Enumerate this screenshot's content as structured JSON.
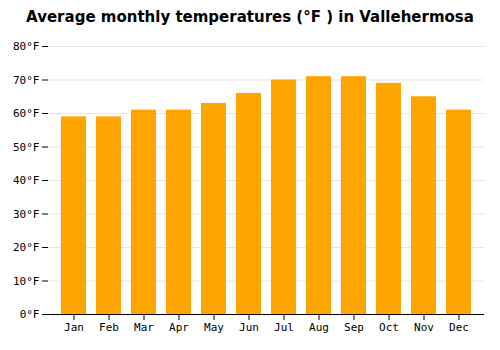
{
  "chart_data": {
    "type": "bar",
    "title": "Average monthly temperatures (°F ) in Vallehermosa",
    "categories": [
      "Jan",
      "Feb",
      "Mar",
      "Apr",
      "May",
      "Jun",
      "Jul",
      "Aug",
      "Sep",
      "Oct",
      "Nov",
      "Dec"
    ],
    "values": [
      59,
      59,
      61,
      61,
      63,
      66,
      70,
      71,
      71,
      69,
      65,
      61
    ],
    "color": "#FFA500",
    "ylim": [
      0,
      80
    ],
    "yticks": [
      {
        "value": 0,
        "label": "0°F"
      },
      {
        "value": 10,
        "label": "10°F"
      },
      {
        "value": 20,
        "label": "20°F"
      },
      {
        "value": 30,
        "label": "30°F"
      },
      {
        "value": 40,
        "label": "40°F"
      },
      {
        "value": 50,
        "label": "50°F"
      },
      {
        "value": 60,
        "label": "60°F"
      },
      {
        "value": 70,
        "label": "70°F"
      },
      {
        "value": 80,
        "label": "80°F"
      }
    ],
    "grid": true
  }
}
